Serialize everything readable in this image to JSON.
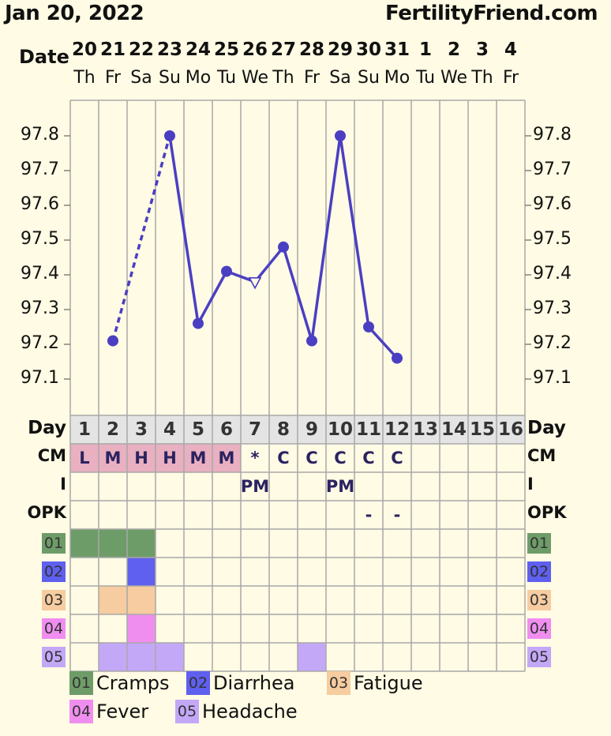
{
  "header": {
    "date": "Jan 20, 2022",
    "site": "FertilityFriend.com"
  },
  "labels": {
    "date": "Date",
    "day": "Day",
    "cm": "CM",
    "i": "I",
    "opk": "OPK"
  },
  "dates": [
    "20",
    "21",
    "22",
    "23",
    "24",
    "25",
    "26",
    "27",
    "28",
    "29",
    "30",
    "31",
    "1",
    "2",
    "3",
    "4"
  ],
  "weekdays": [
    "Th",
    "Fr",
    "Sa",
    "Su",
    "Mo",
    "Tu",
    "We",
    "Th",
    "Fr",
    "Sa",
    "Su",
    "Mo",
    "Tu",
    "We",
    "Th",
    "Fr"
  ],
  "days": [
    "1",
    "2",
    "3",
    "4",
    "5",
    "6",
    "7",
    "8",
    "9",
    "10",
    "11",
    "12",
    "13",
    "14",
    "15",
    "16"
  ],
  "chart_data": {
    "type": "line",
    "y_ticks": [
      "97.8",
      "97.7",
      "97.6",
      "97.5",
      "97.4",
      "97.3",
      "97.2",
      "97.1"
    ],
    "ylim": [
      97.0,
      97.9
    ],
    "series": [
      {
        "values": [
          null,
          97.21,
          null,
          97.8,
          97.26,
          97.41,
          97.38,
          97.48,
          97.21,
          97.8,
          97.25,
          97.16,
          null,
          null,
          null,
          null
        ]
      }
    ],
    "segments": [
      {
        "from": 1,
        "to": 3,
        "style": "dashed"
      },
      {
        "from": 3,
        "to": 11,
        "style": "solid"
      }
    ],
    "point_markers": [
      "none",
      "dot",
      "none",
      "dot",
      "dot",
      "dot",
      "open-triangle",
      "dot",
      "dot",
      "dot",
      "dot",
      "dot",
      "none",
      "none",
      "none",
      "none"
    ]
  },
  "cm": [
    "L",
    "M",
    "H",
    "H",
    "M",
    "M",
    "*",
    "C",
    "C",
    "C",
    "C",
    "C",
    "",
    "",
    "",
    ""
  ],
  "intercourse": [
    "",
    "",
    "",
    "",
    "",
    "",
    "PM",
    "",
    "",
    "PM",
    "",
    "",
    "",
    "",
    "",
    ""
  ],
  "opk": [
    "",
    "",
    "",
    "",
    "",
    "",
    "",
    "",
    "",
    "",
    "-",
    "-",
    "",
    "",
    "",
    ""
  ],
  "symptoms": [
    {
      "code": "01",
      "name": "Cramps",
      "color": "#6e9c68",
      "days": [
        0,
        1,
        2
      ]
    },
    {
      "code": "02",
      "name": "Diarrhea",
      "color": "#5f5ff0",
      "days": [
        2
      ]
    },
    {
      "code": "03",
      "name": "Fatigue",
      "color": "#f6cca0",
      "days": [
        1,
        2
      ]
    },
    {
      "code": "04",
      "name": "Fever",
      "color": "#f08ef0",
      "days": [
        2
      ]
    },
    {
      "code": "05",
      "name": "Headache",
      "color": "#c4a8f8",
      "days": [
        1,
        2,
        3,
        8
      ]
    }
  ],
  "colors": {
    "line": "#4a3fc2",
    "grid": "#a8a8a8",
    "cm_fertile": "#e8b0c0",
    "day_row": "#e4e4e4"
  }
}
